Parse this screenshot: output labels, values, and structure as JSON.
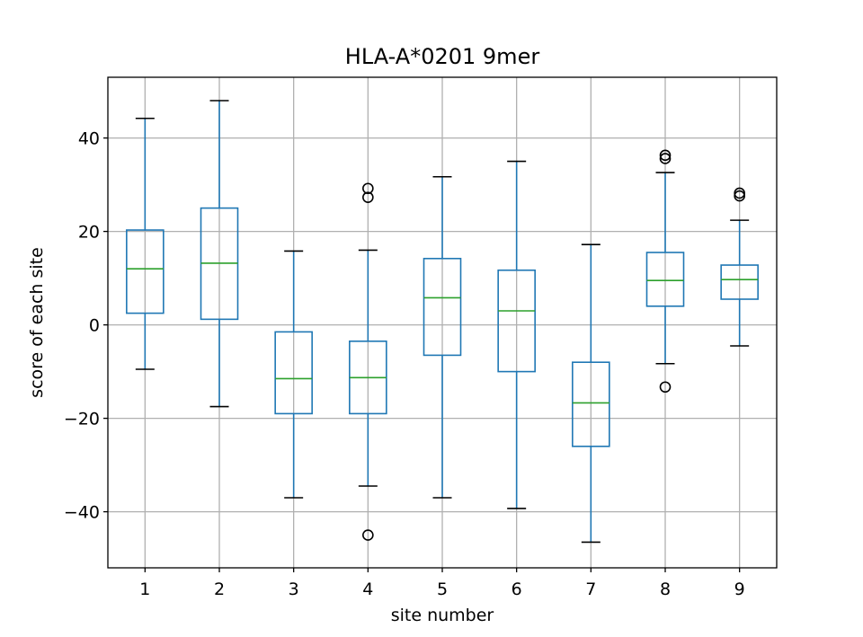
{
  "chart_data": {
    "type": "box",
    "title": "HLA-A*0201 9mer",
    "xlabel": "site number",
    "ylabel": "score of each site",
    "ylim": [
      -52,
      53
    ],
    "yticks": [
      -40,
      -20,
      0,
      20,
      40
    ],
    "ytick_labels": [
      "−40",
      "−20",
      "0",
      "20",
      "40"
    ],
    "grid": true,
    "colors": {
      "box": "#1f77b4",
      "median": "#2ca02c",
      "grid": "#b0b0b0",
      "outlier": "#000000"
    },
    "categories": [
      "1",
      "2",
      "3",
      "4",
      "5",
      "6",
      "7",
      "8",
      "9"
    ],
    "boxes": [
      {
        "category": "1",
        "whisker_low": -9.5,
        "q1": 2.5,
        "median": 12,
        "q3": 20.3,
        "whisker_high": 44.2,
        "outliers": []
      },
      {
        "category": "2",
        "whisker_low": -17.5,
        "q1": 1.2,
        "median": 13.2,
        "q3": 25,
        "whisker_high": 48,
        "outliers": []
      },
      {
        "category": "3",
        "whisker_low": -37,
        "q1": -19,
        "median": -11.5,
        "q3": -1.5,
        "whisker_high": 15.8,
        "outliers": []
      },
      {
        "category": "4",
        "whisker_low": -34.5,
        "q1": -19,
        "median": -11.3,
        "q3": -3.5,
        "whisker_high": 16,
        "outliers": [
          29.2,
          27.3,
          -45
        ]
      },
      {
        "category": "5",
        "whisker_low": -37,
        "q1": -6.5,
        "median": 5.8,
        "q3": 14.2,
        "whisker_high": 31.7,
        "outliers": []
      },
      {
        "category": "6",
        "whisker_low": -39.3,
        "q1": -10,
        "median": 3,
        "q3": 11.7,
        "whisker_high": 35,
        "outliers": []
      },
      {
        "category": "7",
        "whisker_low": -46.5,
        "q1": -26,
        "median": -16.7,
        "q3": -8,
        "whisker_high": 17.2,
        "outliers": []
      },
      {
        "category": "8",
        "whisker_low": -8.3,
        "q1": 4,
        "median": 9.5,
        "q3": 15.5,
        "whisker_high": 32.6,
        "outliers": [
          36.3,
          35.6,
          -13.3
        ]
      },
      {
        "category": "9",
        "whisker_low": -4.5,
        "q1": 5.5,
        "median": 9.7,
        "q3": 12.8,
        "whisker_high": 22.4,
        "outliers": [
          28.2,
          27.6
        ]
      }
    ]
  }
}
